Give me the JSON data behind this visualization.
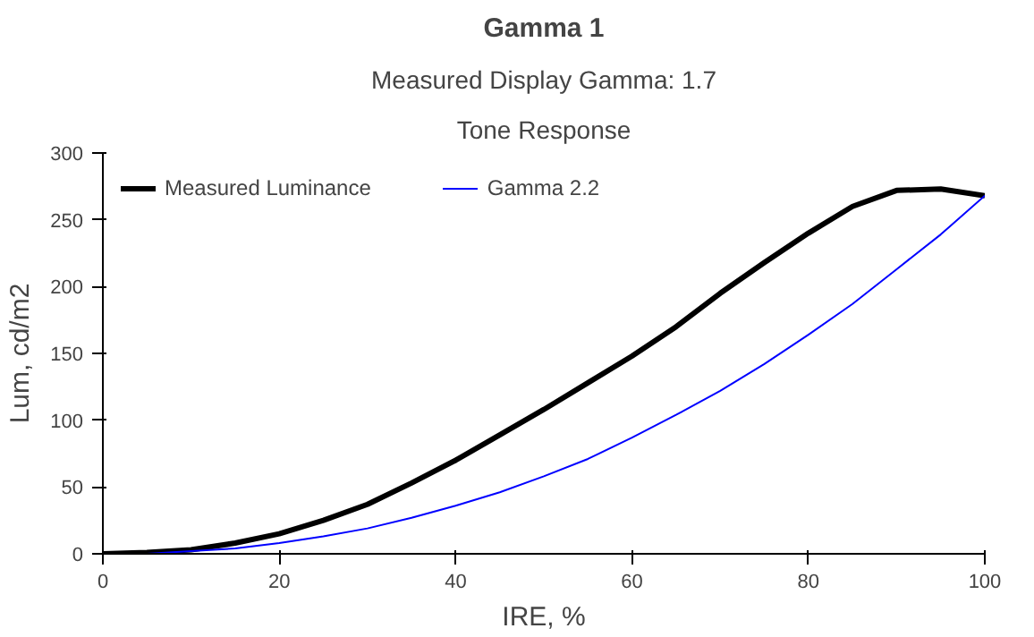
{
  "chart_data": {
    "type": "line",
    "title": "Gamma 1",
    "subtitle": "Measured Display Gamma: 1.7",
    "annotations": [
      "Tone Response"
    ],
    "xlabel": "IRE, %",
    "ylabel": "Lum, cd/m2",
    "x": [
      0,
      5,
      10,
      15,
      20,
      25,
      30,
      35,
      40,
      45,
      50,
      55,
      60,
      65,
      70,
      75,
      80,
      85,
      90,
      95,
      100
    ],
    "series": [
      {
        "name": "Measured Luminance",
        "color": "#000000",
        "values": [
          0,
          1,
          3,
          8,
          15,
          25,
          37,
          53,
          70,
          89,
          108,
          128,
          148,
          170,
          195,
          218,
          240,
          260,
          272,
          273,
          268
        ]
      },
      {
        "name": "Gamma 2.2",
        "color": "#0000ff",
        "values": [
          0,
          0,
          2,
          4,
          8,
          13,
          19,
          27,
          36,
          46,
          58,
          71,
          87,
          104,
          122,
          142,
          164,
          187,
          213,
          239,
          268
        ]
      }
    ],
    "xlim": [
      0,
      100
    ],
    "ylim": [
      0,
      300
    ],
    "xticks": [
      0,
      20,
      40,
      60,
      80,
      100
    ],
    "yticks": [
      0,
      50,
      100,
      150,
      200,
      250,
      300
    ],
    "grid": false,
    "legend": "top left"
  }
}
